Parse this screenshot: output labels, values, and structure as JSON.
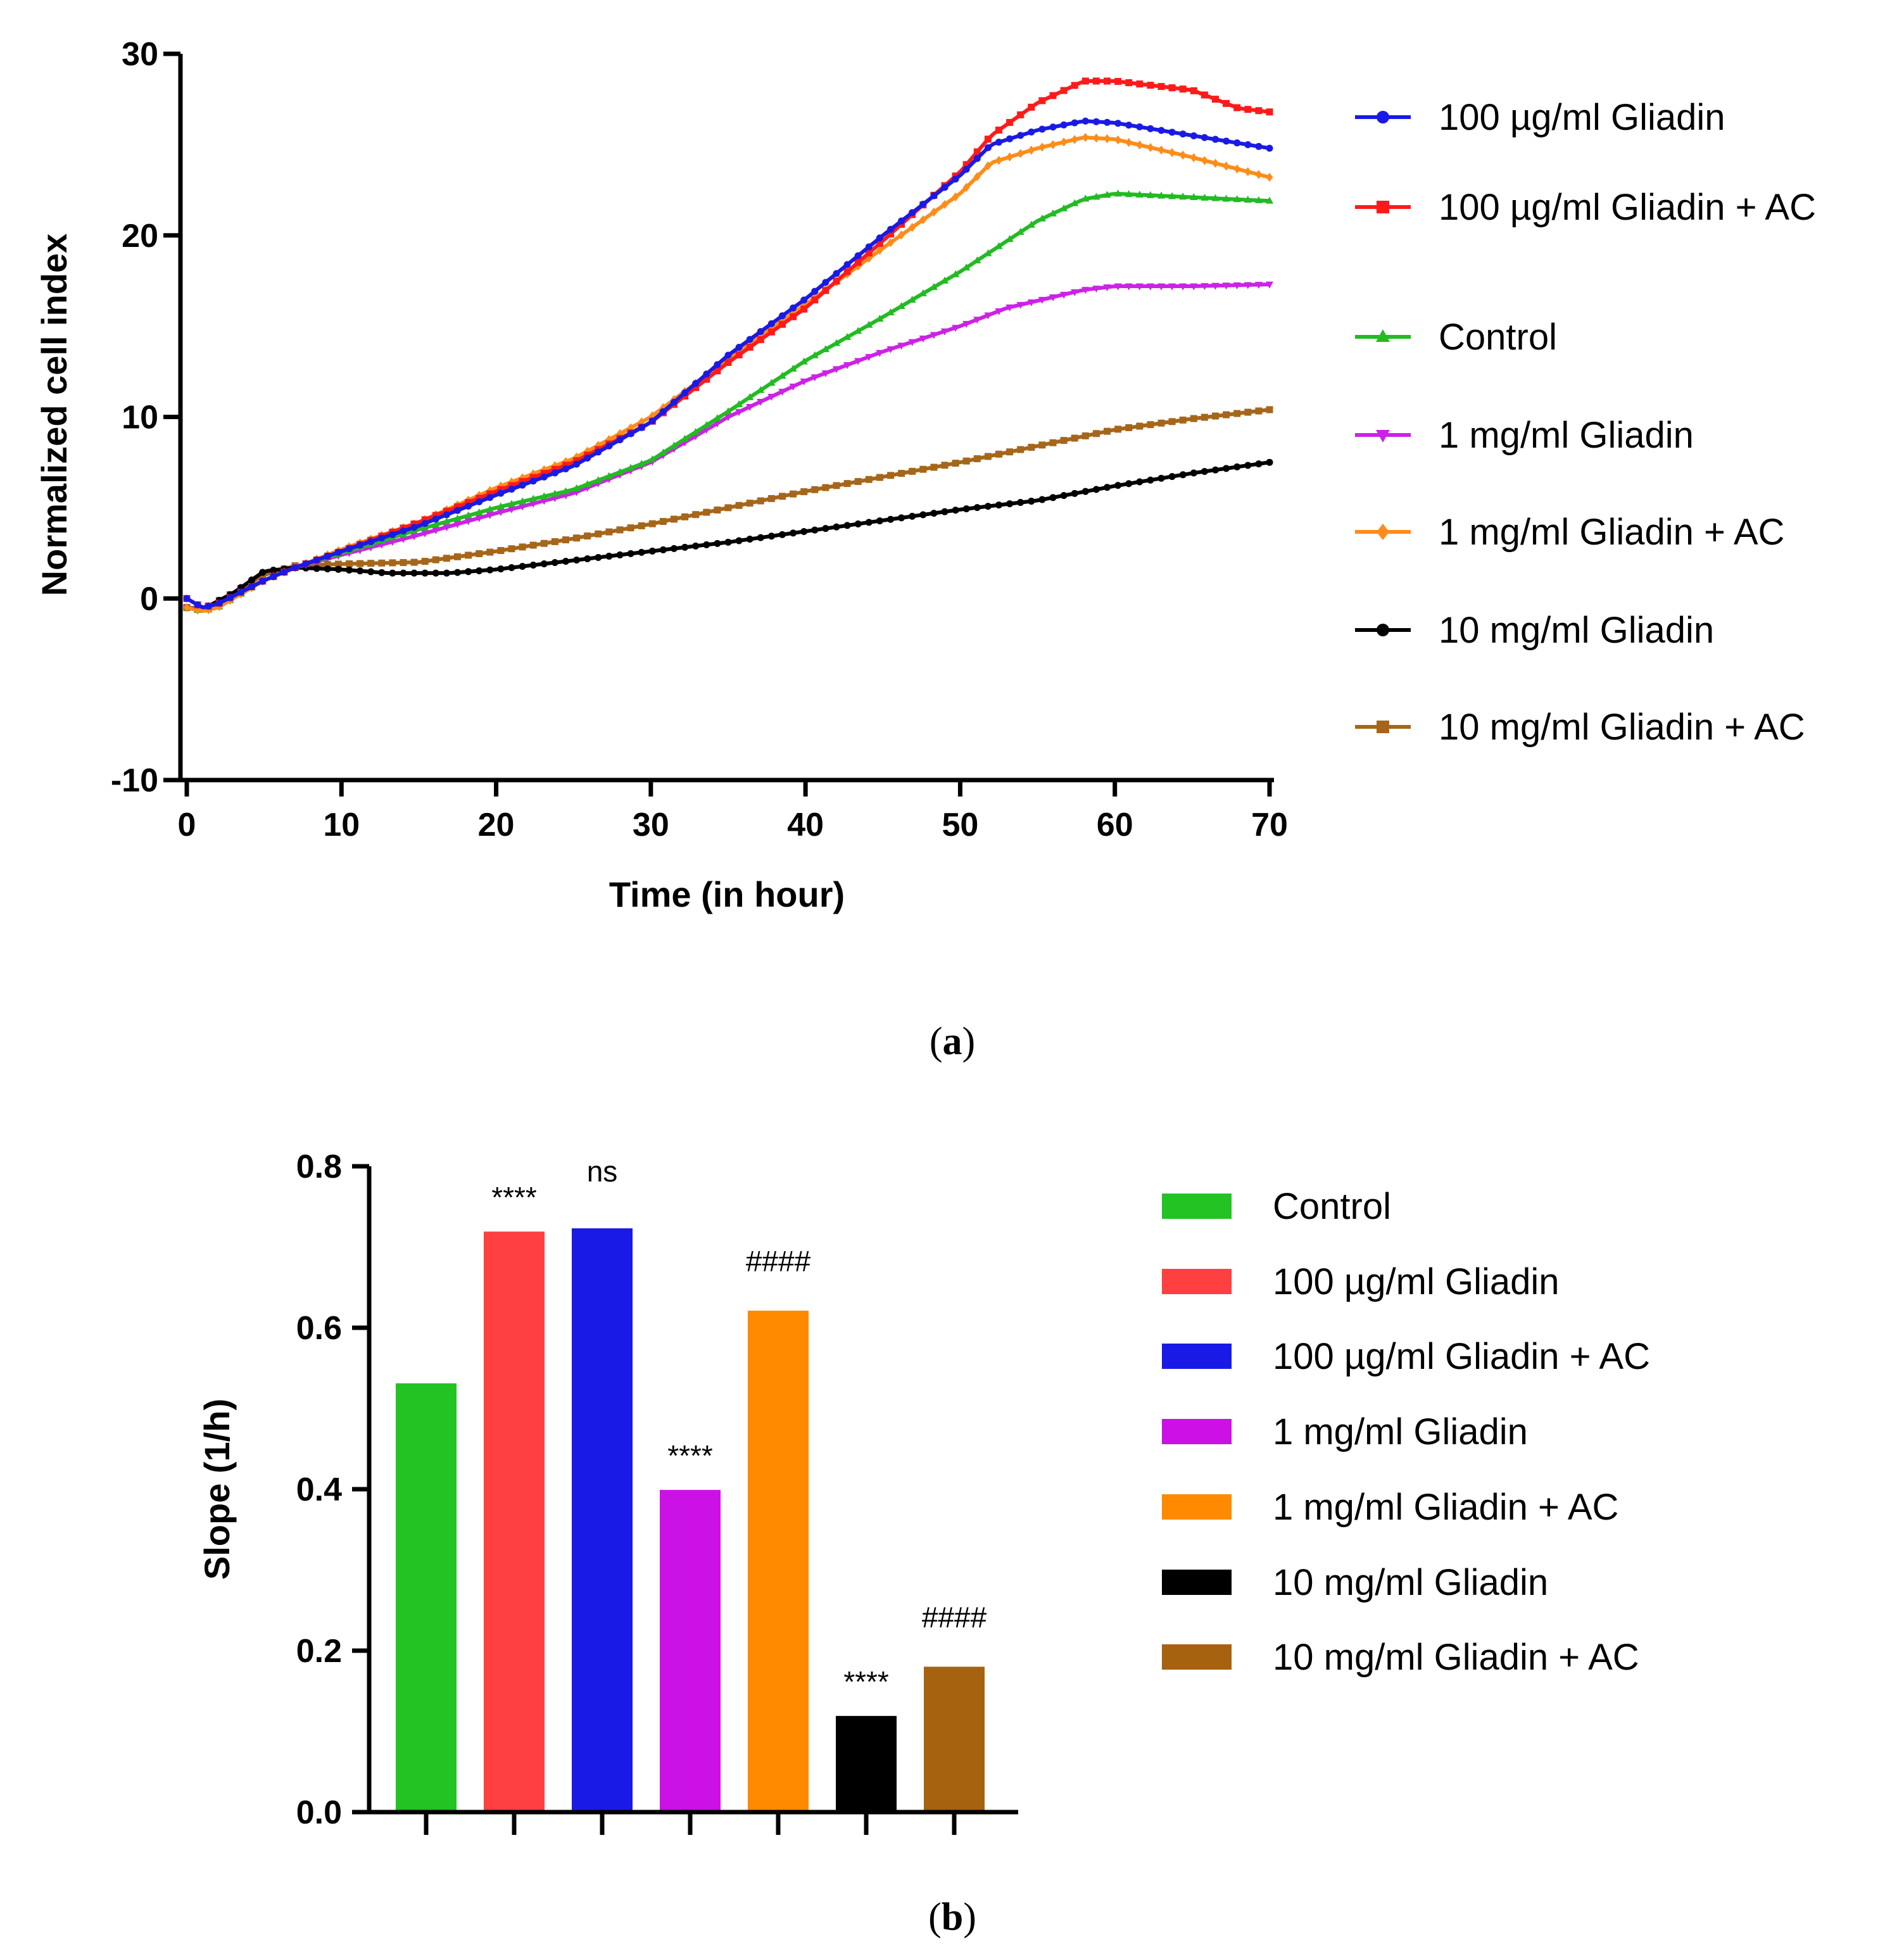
{
  "chart_data": [
    {
      "type": "line",
      "panel_label": "a",
      "xlabel": "Time (in hour)",
      "ylabel": "Normalized cell index",
      "xlim": [
        0,
        70
      ],
      "ylim": [
        -10,
        30
      ],
      "xticks": [
        0,
        10,
        20,
        30,
        40,
        50,
        60,
        70
      ],
      "yticks": [
        -10,
        0,
        10,
        20,
        30
      ],
      "legend_position": "right",
      "series": [
        {
          "name": "100 µg/ml Gliadin",
          "color": "#1a1ae6",
          "marker": "circle",
          "points": [
            [
              0,
              0
            ],
            [
              1,
              -0.5
            ],
            [
              2,
              -0.3
            ],
            [
              5,
              1.0
            ],
            [
              7,
              1.7
            ],
            [
              10,
              2.6
            ],
            [
              15,
              4.0
            ],
            [
              20,
              5.7
            ],
            [
              25,
              7.3
            ],
            [
              30,
              9.7
            ],
            [
              35,
              13.4
            ],
            [
              40,
              16.5
            ],
            [
              45,
              20.0
            ],
            [
              50,
              23.3
            ],
            [
              52,
              25.0
            ],
            [
              55,
              25.8
            ],
            [
              58,
              26.3
            ],
            [
              60,
              26.2
            ],
            [
              65,
              25.5
            ],
            [
              70,
              24.8
            ]
          ]
        },
        {
          "name": "100 µg/ml Gliadin + AC",
          "color": "#ff1a1a",
          "marker": "square",
          "points": [
            [
              0,
              0
            ],
            [
              1,
              -0.5
            ],
            [
              2,
              -0.3
            ],
            [
              5,
              1.0
            ],
            [
              7,
              1.7
            ],
            [
              10,
              2.6
            ],
            [
              15,
              4.2
            ],
            [
              20,
              5.9
            ],
            [
              25,
              7.5
            ],
            [
              30,
              9.7
            ],
            [
              35,
              13.0
            ],
            [
              40,
              16.0
            ],
            [
              45,
              19.7
            ],
            [
              50,
              23.5
            ],
            [
              52,
              25.5
            ],
            [
              55,
              27.3
            ],
            [
              58,
              28.5
            ],
            [
              60,
              28.5
            ],
            [
              65,
              28.0
            ],
            [
              68,
              27.0
            ],
            [
              70,
              26.8
            ]
          ]
        },
        {
          "name": "Control",
          "color": "#22bb22",
          "marker": "triangle-up",
          "points": [
            [
              0,
              -0.5
            ],
            [
              1,
              -0.7
            ],
            [
              2,
              -0.5
            ],
            [
              5,
              1.0
            ],
            [
              7,
              1.7
            ],
            [
              10,
              2.5
            ],
            [
              15,
              3.8
            ],
            [
              20,
              5.0
            ],
            [
              25,
              6.0
            ],
            [
              30,
              7.6
            ],
            [
              35,
              10.3
            ],
            [
              40,
              13.1
            ],
            [
              45,
              15.5
            ],
            [
              50,
              18.0
            ],
            [
              55,
              20.8
            ],
            [
              58,
              22.0
            ],
            [
              60,
              22.3
            ],
            [
              65,
              22.1
            ],
            [
              70,
              21.9
            ]
          ]
        },
        {
          "name": "1 mg/ml Gliadin",
          "color": "#cc22e6",
          "marker": "triangle-down",
          "points": [
            [
              0,
              -0.5
            ],
            [
              1,
              -0.7
            ],
            [
              2,
              -0.5
            ],
            [
              5,
              1.0
            ],
            [
              7,
              1.7
            ],
            [
              10,
              2.4
            ],
            [
              15,
              3.5
            ],
            [
              20,
              4.7
            ],
            [
              25,
              5.8
            ],
            [
              30,
              7.5
            ],
            [
              35,
              10.0
            ],
            [
              40,
              12.0
            ],
            [
              45,
              13.6
            ],
            [
              50,
              15.0
            ],
            [
              53,
              16.0
            ],
            [
              58,
              17.0
            ],
            [
              60,
              17.2
            ],
            [
              65,
              17.2
            ],
            [
              70,
              17.3
            ]
          ]
        },
        {
          "name": "1 mg/ml Gliadin + AC",
          "color": "#ff8c1a",
          "marker": "diamond",
          "points": [
            [
              0,
              -0.5
            ],
            [
              1,
              -0.7
            ],
            [
              2,
              -0.5
            ],
            [
              5,
              1.0
            ],
            [
              7,
              1.7
            ],
            [
              10,
              2.7
            ],
            [
              15,
              4.2
            ],
            [
              20,
              6.1
            ],
            [
              25,
              7.7
            ],
            [
              30,
              10.0
            ],
            [
              35,
              13.2
            ],
            [
              40,
              16.2
            ],
            [
              45,
              19.3
            ],
            [
              50,
              22.3
            ],
            [
              52,
              24.0
            ],
            [
              55,
              24.8
            ],
            [
              58,
              25.4
            ],
            [
              60,
              25.3
            ],
            [
              65,
              24.3
            ],
            [
              70,
              23.2
            ]
          ]
        },
        {
          "name": "10 mg/ml Gliadin",
          "color": "#000000",
          "marker": "circle",
          "points": [
            [
              0,
              -0.5
            ],
            [
              1,
              -0.6
            ],
            [
              3,
              0.3
            ],
            [
              5,
              1.5
            ],
            [
              7,
              1.7
            ],
            [
              10,
              1.6
            ],
            [
              13,
              1.4
            ],
            [
              17,
              1.4
            ],
            [
              20,
              1.6
            ],
            [
              25,
              2.1
            ],
            [
              30,
              2.6
            ],
            [
              35,
              3.1
            ],
            [
              40,
              3.7
            ],
            [
              45,
              4.3
            ],
            [
              50,
              4.9
            ],
            [
              55,
              5.4
            ],
            [
              60,
              6.2
            ],
            [
              65,
              6.9
            ],
            [
              70,
              7.5
            ]
          ]
        },
        {
          "name": "10 mg/ml Gliadin + AC",
          "color": "#a6661a",
          "marker": "square",
          "points": [
            [
              0,
              -0.5
            ],
            [
              1,
              -0.6
            ],
            [
              3,
              0.3
            ],
            [
              5,
              1.3
            ],
            [
              7,
              1.8
            ],
            [
              10,
              1.9
            ],
            [
              15,
              2.0
            ],
            [
              20,
              2.6
            ],
            [
              25,
              3.3
            ],
            [
              30,
              4.1
            ],
            [
              35,
              5.0
            ],
            [
              40,
              5.9
            ],
            [
              45,
              6.7
            ],
            [
              50,
              7.5
            ],
            [
              55,
              8.4
            ],
            [
              60,
              9.3
            ],
            [
              65,
              9.9
            ],
            [
              70,
              10.4
            ]
          ]
        }
      ]
    },
    {
      "type": "bar",
      "panel_label": "b",
      "ylabel": "Slope (1/h)",
      "ylim": [
        0.0,
        0.8
      ],
      "yticks": [
        "0.0",
        "0.2",
        "0.4",
        "0.6",
        "0.8"
      ],
      "legend_position": "right",
      "bars": [
        {
          "name": "Control",
          "value": 0.528,
          "color": "#22c322",
          "annotation": ""
        },
        {
          "name": "100 µg/ml Gliadin",
          "value": 0.716,
          "color": "#ff4040",
          "annotation": "****"
        },
        {
          "name": "100 µg/ml Gliadin + AC",
          "value": 0.72,
          "color": "#1a1ae6",
          "annotation": "ns"
        },
        {
          "name": "1 mg/ml Gliadin",
          "value": 0.396,
          "color": "#cc11e6",
          "annotation": "****"
        },
        {
          "name": "1 mg/ml Gliadin + AC",
          "value": 0.618,
          "color": "#ff8a00",
          "annotation": "####"
        },
        {
          "name": "10 mg/ml Gliadin",
          "value": 0.116,
          "color": "#000000",
          "annotation": "****"
        },
        {
          "name": "10 mg/ml Gliadin + AC",
          "value": 0.177,
          "color": "#a6620f",
          "annotation": "####"
        }
      ]
    }
  ]
}
